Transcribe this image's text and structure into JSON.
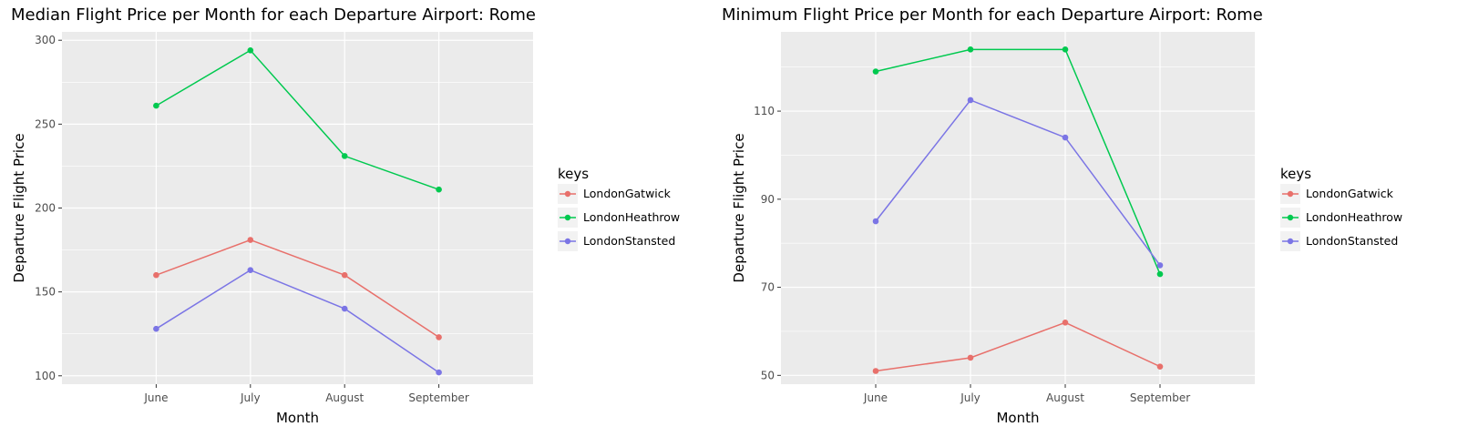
{
  "chart_data": [
    {
      "type": "line",
      "title": "Median Flight Price per Month for each Departure Airport: Rome",
      "xlabel": "Month",
      "ylabel": "Departure Flight Price",
      "categories": [
        "June",
        "July",
        "August",
        "September"
      ],
      "ylim": [
        95,
        305
      ],
      "yticks": [
        100,
        150,
        200,
        250,
        300
      ],
      "grid": true,
      "legend": {
        "title": "keys",
        "placement": "right"
      },
      "series": [
        {
          "name": "LondonGatwick",
          "color": "#e8706b",
          "values": [
            160,
            181,
            160,
            123
          ]
        },
        {
          "name": "LondonHeathrow",
          "color": "#00c94f",
          "values": [
            261,
            294,
            231,
            211
          ]
        },
        {
          "name": "LondonStansted",
          "color": "#7b75e5",
          "values": [
            128,
            163,
            140,
            102
          ]
        }
      ]
    },
    {
      "type": "line",
      "title": "Minimum Flight Price per Month for each Departure Airport: Rome",
      "xlabel": "Month",
      "ylabel": "Departure Flight Price",
      "categories": [
        "June",
        "July",
        "August",
        "September"
      ],
      "ylim": [
        48,
        128
      ],
      "yticks": [
        50,
        70,
        90,
        110
      ],
      "grid": true,
      "legend": {
        "title": "keys",
        "placement": "right"
      },
      "series": [
        {
          "name": "LondonGatwick",
          "color": "#e8706b",
          "values": [
            51,
            54,
            62,
            52
          ]
        },
        {
          "name": "LondonHeathrow",
          "color": "#00c94f",
          "values": [
            119,
            124,
            124,
            73
          ]
        },
        {
          "name": "LondonStansted",
          "color": "#7b75e5",
          "values": [
            85,
            112.5,
            104,
            75
          ]
        }
      ]
    }
  ]
}
